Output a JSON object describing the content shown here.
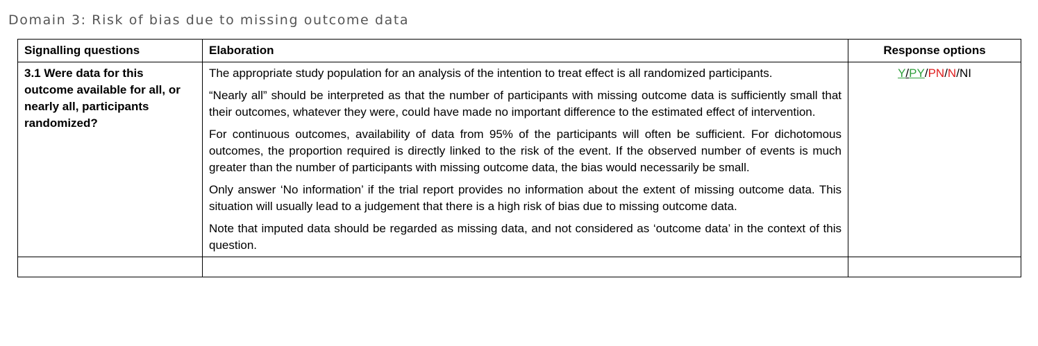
{
  "heading": "Domain 3: Risk of bias due to missing outcome data",
  "table": {
    "headers": {
      "signalling": "Signalling questions",
      "elaboration": "Elaboration",
      "response": "Response options"
    },
    "row": {
      "question": "3.1 Were data for this outcome available for all, or nearly all, participants randomized?",
      "paragraphs": [
        "The appropriate study population for an analysis of the intention to treat effect is all randomized participants.",
        "“Nearly all” should be interpreted as that the number of participants with missing outcome data is sufficiently small that their outcomes, whatever they were, could have made no important difference to the estimated effect of intervention.",
        "For continuous outcomes, availability of data from 95% of the participants will often be sufficient. For dichotomous outcomes, the proportion required is directly linked to the risk of the event. If the observed number of events is much greater than the number of participants with missing outcome data, the bias would necessarily be small.",
        "Only answer ‘No information’ if the trial report provides no information about the extent of missing outcome data. This situation will usually lead to a judgement that there is a high risk of bias due to missing outcome data.",
        "Note that imputed data should be regarded as missing data, and not considered as ‘outcome data’ in the context of this question."
      ],
      "response_options": {
        "y": "Y",
        "py": "PY",
        "pn": "PN",
        "n": "N",
        "ni": "NI",
        "separator": "/"
      }
    }
  },
  "colors": {
    "low_risk_green": "#2e9e3a",
    "high_risk_red": "#e02020",
    "heading_gray": "#555555"
  }
}
